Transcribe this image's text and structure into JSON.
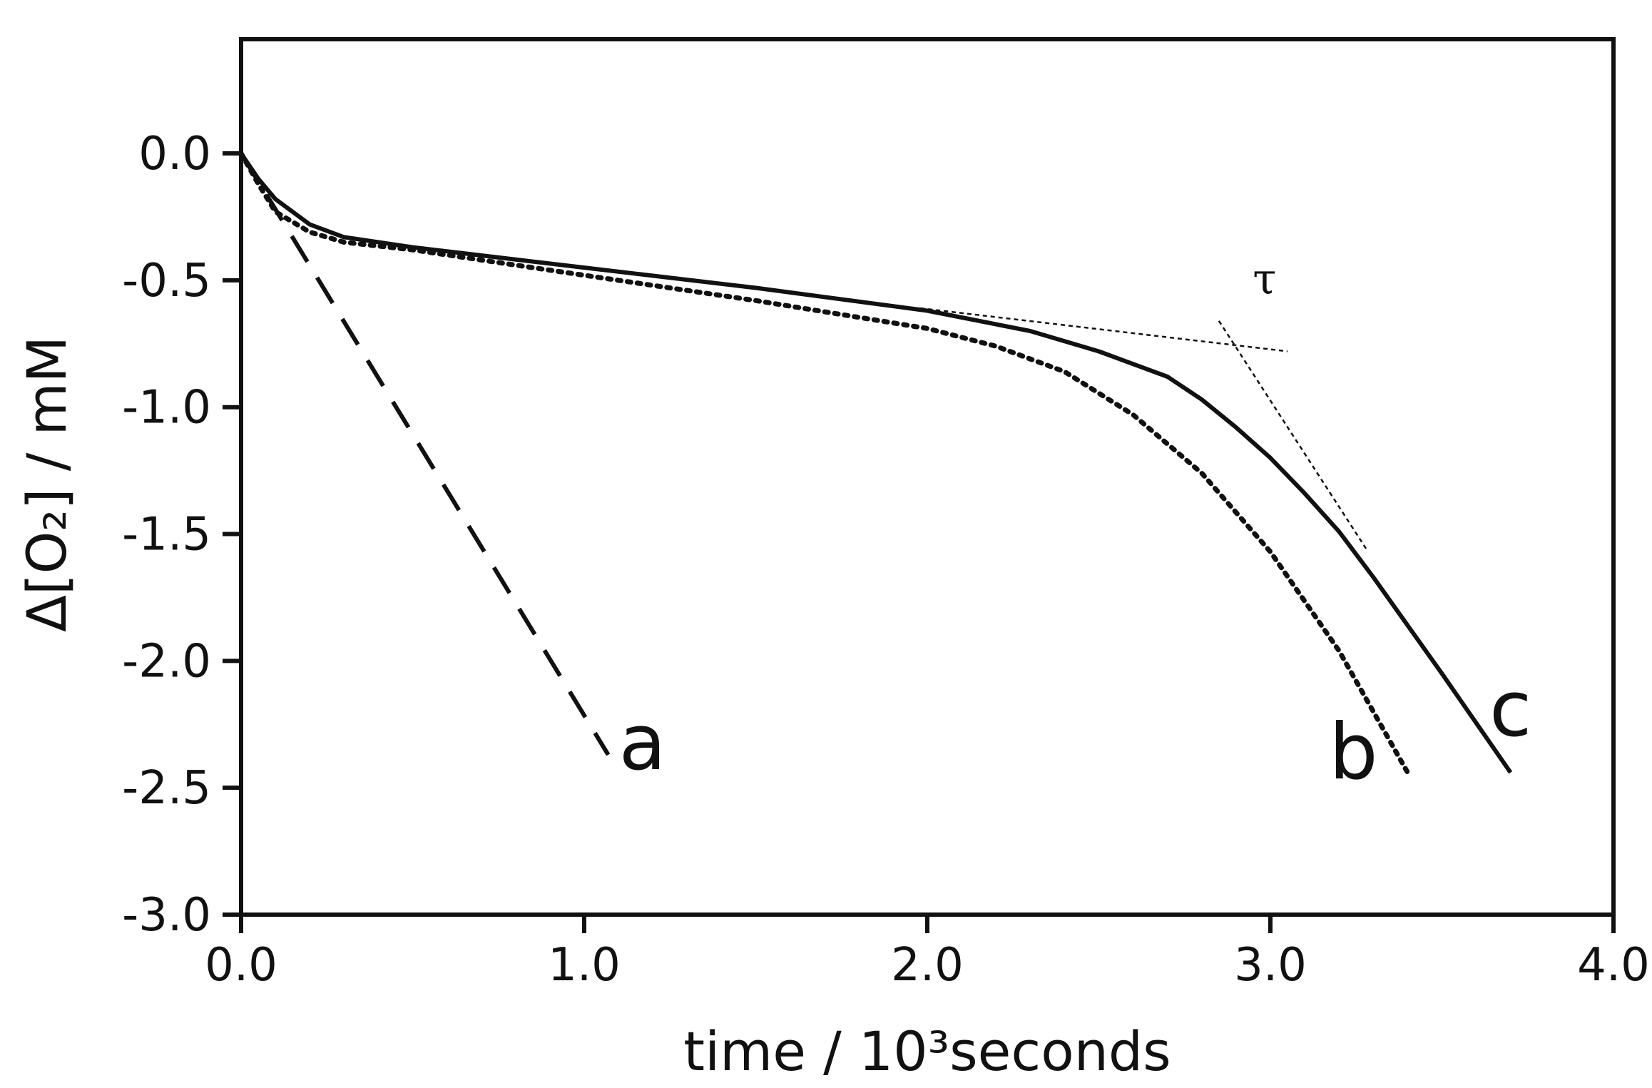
{
  "chart_data": {
    "type": "line",
    "title": "",
    "xlabel": "time  / 10³seconds",
    "ylabel": "Δ[O₂] / mM",
    "xlim": [
      0.0,
      4.0
    ],
    "ylim": [
      -3.0,
      0.45
    ],
    "x_ticks": [
      "0.0",
      "1.0",
      "2.0",
      "3.0",
      "4.0"
    ],
    "y_ticks": [
      "0.0",
      "-0.5",
      "-1.0",
      "-1.5",
      "-2.0",
      "-2.5",
      "-3.0"
    ],
    "grid": false,
    "legend": "none",
    "series": [
      {
        "name": "a",
        "style": "dashed",
        "x": [
          0.0,
          0.1,
          1.07
        ],
        "y": [
          0.0,
          -0.22,
          -2.37
        ]
      },
      {
        "name": "b",
        "style": "dotted",
        "x": [
          0.0,
          0.05,
          0.1,
          0.2,
          0.3,
          0.5,
          1.0,
          1.5,
          2.0,
          2.2,
          2.4,
          2.6,
          2.8,
          3.0,
          3.2,
          3.4
        ],
        "y": [
          0.0,
          -0.12,
          -0.23,
          -0.31,
          -0.35,
          -0.38,
          -0.48,
          -0.58,
          -0.69,
          -0.76,
          -0.86,
          -1.03,
          -1.26,
          -1.57,
          -1.96,
          -2.44
        ]
      },
      {
        "name": "c",
        "style": "solid",
        "x": [
          0.0,
          0.05,
          0.1,
          0.2,
          0.3,
          0.5,
          1.0,
          1.5,
          2.0,
          2.3,
          2.5,
          2.7,
          2.8,
          2.9,
          3.0,
          3.1,
          3.2,
          3.3,
          3.5,
          3.7
        ],
        "y": [
          0.0,
          -0.1,
          -0.18,
          -0.28,
          -0.33,
          -0.37,
          -0.45,
          -0.53,
          -0.62,
          -0.7,
          -0.78,
          -0.88,
          -0.97,
          -1.08,
          -1.2,
          -1.34,
          -1.49,
          -1.67,
          -2.05,
          -2.44
        ]
      }
    ],
    "annotations": [
      {
        "text": "τ",
        "x": 2.9,
        "y": -0.58
      },
      {
        "text": "tangent-early",
        "style": "thin-dashed",
        "x": [
          1.98,
          3.05
        ],
        "y": [
          -0.61,
          -0.78
        ]
      },
      {
        "text": "tangent-late",
        "style": "thin-dashed",
        "x": [
          2.85,
          3.28
        ],
        "y": [
          -0.66,
          -1.56
        ]
      }
    ]
  }
}
